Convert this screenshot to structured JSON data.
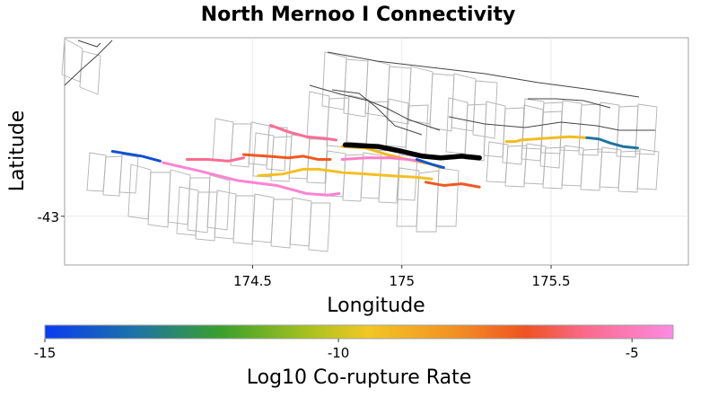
{
  "chart_data": {
    "type": "map",
    "title": "North Mernoo I Connectivity",
    "xlabel": "Longitude",
    "ylabel": "Latitude",
    "xlim": [
      173.87,
      175.96
    ],
    "ylim": [
      -43.15,
      -42.45
    ],
    "xticks": [
      174.5,
      175,
      175.5
    ],
    "xtick_labels": [
      "174.5",
      "175",
      "175.5"
    ],
    "yticks": [
      -43
    ],
    "ytick_labels": [
      "-43"
    ],
    "colorbar": {
      "label": "Log10 Co-rupture Rate",
      "min": -15,
      "max": -4.3,
      "ticks": [
        -15,
        -10,
        -5
      ],
      "tick_labels": [
        "-15",
        "-10",
        "-5"
      ],
      "stops": [
        {
          "value": -15,
          "color": "#0a3cf0"
        },
        {
          "value": -13.5,
          "color": "#1c72a8"
        },
        {
          "value": -12,
          "color": "#3aa02c"
        },
        {
          "value": -10.5,
          "color": "#a8c21e"
        },
        {
          "value": -9.5,
          "color": "#f2c724"
        },
        {
          "value": -8,
          "color": "#f29024"
        },
        {
          "value": -6.8,
          "color": "#ee5322"
        },
        {
          "value": -5.8,
          "color": "#fa6a8a"
        },
        {
          "value": -4.3,
          "color": "#fd8ae4"
        }
      ]
    },
    "target_fault": {
      "name": "North Mernoo I",
      "color": "#000000",
      "points": [
        [
          174.81,
          -42.78
        ],
        [
          174.92,
          -42.785
        ],
        [
          175.0,
          -42.8
        ],
        [
          175.07,
          -42.815
        ],
        [
          175.13,
          -42.82
        ],
        [
          175.2,
          -42.815
        ],
        [
          175.26,
          -42.82
        ]
      ]
    },
    "rupture_sections": [
      {
        "rate": -14.5,
        "points": [
          [
            174.03,
            -42.8
          ],
          [
            174.13,
            -42.815
          ],
          [
            174.19,
            -42.83
          ]
        ]
      },
      {
        "rate": -4.6,
        "points": [
          [
            174.2,
            -42.835
          ],
          [
            174.32,
            -42.86
          ],
          [
            174.45,
            -42.89
          ],
          [
            174.58,
            -42.905
          ],
          [
            174.68,
            -42.93
          ],
          [
            174.75,
            -42.935
          ],
          [
            174.79,
            -42.93
          ]
        ]
      },
      {
        "rate": -5.7,
        "points": [
          [
            174.28,
            -42.825
          ],
          [
            174.35,
            -42.825
          ],
          [
            174.42,
            -42.83
          ],
          [
            174.47,
            -42.82
          ]
        ]
      },
      {
        "rate": -6.9,
        "points": [
          [
            174.47,
            -42.81
          ],
          [
            174.55,
            -42.815
          ],
          [
            174.62,
            -42.82
          ],
          [
            174.67,
            -42.815
          ],
          [
            174.72,
            -42.825
          ],
          [
            174.76,
            -42.825
          ]
        ]
      },
      {
        "rate": -5.6,
        "points": [
          [
            174.56,
            -42.72
          ],
          [
            174.62,
            -42.74
          ],
          [
            174.68,
            -42.755
          ],
          [
            174.74,
            -42.76
          ],
          [
            174.78,
            -42.765
          ]
        ]
      },
      {
        "rate": -9.3,
        "points": [
          [
            174.52,
            -42.875
          ],
          [
            174.6,
            -42.87
          ],
          [
            174.67,
            -42.855
          ],
          [
            174.72,
            -42.855
          ],
          [
            174.8,
            -42.865
          ],
          [
            174.88,
            -42.87
          ],
          [
            174.96,
            -42.875
          ],
          [
            175.05,
            -42.88
          ],
          [
            175.1,
            -42.885
          ]
        ]
      },
      {
        "rate": -9.1,
        "points": [
          [
            174.8,
            -42.785
          ],
          [
            174.88,
            -42.79
          ],
          [
            174.95,
            -42.81
          ],
          [
            175.02,
            -42.825
          ],
          [
            175.1,
            -42.84
          ],
          [
            175.13,
            -42.85
          ]
        ]
      },
      {
        "rate": -4.8,
        "points": [
          [
            174.8,
            -42.825
          ],
          [
            174.88,
            -42.82
          ],
          [
            174.96,
            -42.82
          ],
          [
            175.02,
            -42.825
          ],
          [
            175.06,
            -42.83
          ]
        ]
      },
      {
        "rate": -14.3,
        "points": [
          [
            175.05,
            -42.825
          ],
          [
            175.1,
            -42.84
          ],
          [
            175.14,
            -42.85
          ]
        ]
      },
      {
        "rate": -6.9,
        "points": [
          [
            175.08,
            -42.895
          ],
          [
            175.14,
            -42.905
          ],
          [
            175.2,
            -42.9
          ],
          [
            175.26,
            -42.91
          ]
        ]
      },
      {
        "rate": -9.2,
        "points": [
          [
            175.35,
            -42.77
          ],
          [
            175.38,
            -42.77
          ],
          [
            175.4,
            -42.765
          ],
          [
            175.48,
            -42.76
          ],
          [
            175.56,
            -42.755
          ],
          [
            175.62,
            -42.758
          ]
        ]
      },
      {
        "rate": -13.4,
        "points": [
          [
            175.62,
            -42.758
          ],
          [
            175.66,
            -42.762
          ],
          [
            175.7,
            -42.775
          ],
          [
            175.74,
            -42.785
          ],
          [
            175.79,
            -42.79
          ]
        ]
      }
    ]
  }
}
